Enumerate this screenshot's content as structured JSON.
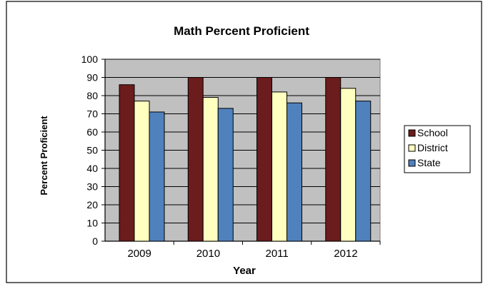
{
  "chart_data": {
    "type": "bar",
    "title": "Math Percent Proficient",
    "xlabel": "Year",
    "ylabel": "Percent Proficient",
    "categories": [
      "2009",
      "2010",
      "2011",
      "2012"
    ],
    "ylim": [
      0,
      100
    ],
    "yticks": [
      0,
      10,
      20,
      30,
      40,
      50,
      60,
      70,
      80,
      90,
      100
    ],
    "grid": true,
    "legend": "right",
    "series": [
      {
        "name": "School",
        "color": "#6b1c1c",
        "values": [
          86,
          90,
          90,
          90
        ]
      },
      {
        "name": "District",
        "color": "#ffffc0",
        "values": [
          77,
          79,
          82,
          84
        ]
      },
      {
        "name": "State",
        "color": "#4f81bd",
        "values": [
          71,
          73,
          76,
          77
        ]
      }
    ],
    "plot_background": "#c0c0c0"
  }
}
